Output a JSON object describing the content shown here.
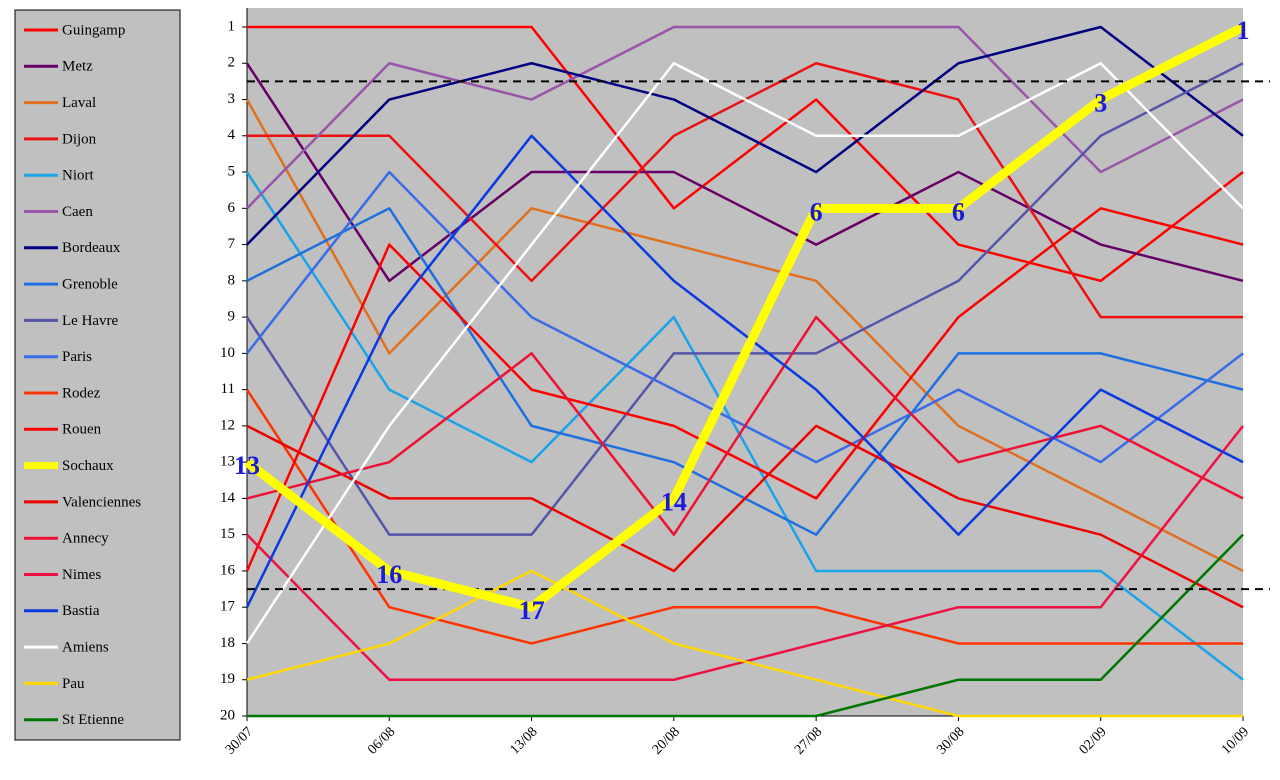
{
  "chart_data": {
    "type": "line",
    "categories": [
      "30/07",
      "06/08",
      "13/08",
      "20/08",
      "27/08",
      "30/08",
      "02/09",
      "10/09"
    ],
    "ylim": [
      1,
      20
    ],
    "yticks": [
      1,
      2,
      3,
      4,
      5,
      6,
      7,
      8,
      9,
      10,
      11,
      12,
      13,
      14,
      15,
      16,
      17,
      18,
      19,
      20
    ],
    "y_reversed": true,
    "background": "#c0c0c0",
    "reference_lines": [
      2.5,
      16.5
    ],
    "highlight": "Sochaux",
    "series": [
      {
        "name": "Guingamp",
        "color": "#ff0000",
        "values": [
          1,
          1,
          1,
          6,
          3,
          7,
          8,
          5
        ]
      },
      {
        "name": "Metz",
        "color": "#660066",
        "values": [
          2,
          8,
          5,
          5,
          7,
          5,
          7,
          8
        ]
      },
      {
        "name": "Laval",
        "color": "#e07020",
        "values": [
          3,
          10,
          6,
          7,
          8,
          12,
          14,
          16
        ]
      },
      {
        "name": "Dijon",
        "color": "#ee1111",
        "values": [
          4,
          4,
          8,
          4,
          2,
          3,
          9,
          9
        ]
      },
      {
        "name": "Niort",
        "color": "#1aa3e8",
        "values": [
          5,
          11,
          13,
          9,
          16,
          16,
          16,
          19
        ]
      },
      {
        "name": "Caen",
        "color": "#9955aa",
        "values": [
          6,
          2,
          3,
          1,
          1,
          1,
          5,
          3
        ]
      },
      {
        "name": "Bordeaux",
        "color": "#000080",
        "values": [
          7,
          3,
          2,
          3,
          5,
          2,
          1,
          4
        ]
      },
      {
        "name": "Grenoble",
        "color": "#1e6fe0",
        "values": [
          8,
          6,
          12,
          13,
          15,
          10,
          10,
          11
        ]
      },
      {
        "name": "Le Havre",
        "color": "#5555aa",
        "values": [
          9,
          15,
          15,
          10,
          10,
          8,
          4,
          2
        ]
      },
      {
        "name": "Paris",
        "color": "#3a6be8",
        "values": [
          10,
          5,
          9,
          11,
          13,
          11,
          13,
          10
        ]
      },
      {
        "name": "Rodez",
        "color": "#ff3300",
        "values": [
          11,
          17,
          18,
          17,
          17,
          18,
          18,
          18
        ]
      },
      {
        "name": "Rouen",
        "color": "#ff0000",
        "values": [
          16,
          7,
          11,
          12,
          14,
          9,
          6,
          7
        ]
      },
      {
        "name": "Sochaux",
        "color": "#ffff00",
        "values": [
          13,
          16,
          17,
          14,
          6,
          6,
          3,
          1
        ]
      },
      {
        "name": "Valenciennes",
        "color": "#ee0000",
        "values": [
          12,
          14,
          14,
          16,
          12,
          14,
          15,
          17
        ]
      },
      {
        "name": "Annecy",
        "color": "#ee1133",
        "values": [
          14,
          13,
          10,
          15,
          9,
          13,
          12,
          14
        ]
      },
      {
        "name": "Nimes",
        "color": "#ee1144",
        "values": [
          15,
          19,
          19,
          19,
          18,
          17,
          17,
          12
        ]
      },
      {
        "name": "Bastia",
        "color": "#0a3ae0",
        "values": [
          17,
          9,
          4,
          8,
          11,
          15,
          11,
          13
        ]
      },
      {
        "name": "Amiens",
        "color": "#ffffff",
        "values": [
          18,
          12,
          7,
          2,
          4,
          4,
          2,
          6
        ]
      },
      {
        "name": "Pau",
        "color": "#ffd700",
        "values": [
          19,
          18,
          16,
          18,
          19,
          20,
          20,
          20
        ]
      },
      {
        "name": "St Etienne",
        "color": "#007700",
        "values": [
          20,
          20,
          20,
          20,
          20,
          19,
          19,
          15
        ]
      }
    ]
  }
}
